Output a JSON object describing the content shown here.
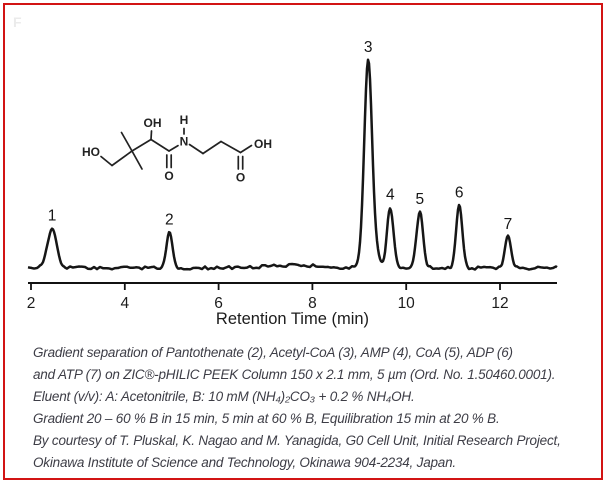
{
  "frame": {
    "border_color": "#d21414",
    "watermark": "F"
  },
  "chart_data": {
    "type": "line",
    "kind": "chromatogram",
    "title": "",
    "xlabel": "Retention Time (min)",
    "ylabel": "",
    "x_ticks": [
      "2",
      "4",
      "6",
      "8",
      "10",
      "12"
    ],
    "x_range_min": [
      1.93,
      13.28
    ],
    "grid": false,
    "legend": false,
    "trace_color": "#161616",
    "peaks": [
      {
        "label": "1",
        "rt_min": 2.45,
        "intensity": 19,
        "sigma_min": 0.1
      },
      {
        "label": "2",
        "rt_min": 4.95,
        "intensity": 17,
        "sigma_min": 0.065
      },
      {
        "label": "3",
        "rt_min": 9.19,
        "intensity": 100,
        "sigma_min": 0.085
      },
      {
        "label": "4",
        "rt_min": 9.66,
        "intensity": 29,
        "sigma_min": 0.07
      },
      {
        "label": "5",
        "rt_min": 10.29,
        "intensity": 27,
        "sigma_min": 0.07
      },
      {
        "label": "6",
        "rt_min": 11.13,
        "intensity": 30,
        "sigma_min": 0.065
      },
      {
        "label": "7",
        "rt_min": 12.17,
        "intensity": 15,
        "sigma_min": 0.065
      }
    ],
    "minor_features": [
      {
        "rt_min": 9.38,
        "intensity": 4,
        "sigma_min": 0.06
      }
    ],
    "baseline_drift": {
      "center_min": 7.6,
      "intensity": 1.3,
      "sigma_min": 0.6
    }
  },
  "structure": {
    "atom_labels": {
      "ho": "HO",
      "oh_top": "OH",
      "h_amide": "H",
      "n_amide": "N",
      "o_carbonyl": "O",
      "o_acid": "O",
      "oh_acid": "OH"
    }
  },
  "caption": {
    "lines": [
      "Gradient separation of Pantothenate (2), Acetyl-CoA (3), AMP (4), CoA (5), ADP (6)",
      "and ATP (7) on ZIC®-pHILIC PEEK Column 150 x 2.1 mm, 5 µm (Ord. No. 1.50460.0001).",
      "Eluent (v/v): A: Acetonitrile, B: 10 mM (NH₄)₂CO₃ + 0.2 % NH₄OH.",
      "Gradient 20 – 60 % B in 15 min, 5 min at 60 % B, Equilibration 15 min at 20 % B.",
      "By courtesy of T. Pluskal, K. Nagao and M. Yanagida, G0 Cell Unit, Initial Research Project,",
      "Okinawa Institute of Science and Technology, Okinawa 904-2234, Japan."
    ]
  }
}
